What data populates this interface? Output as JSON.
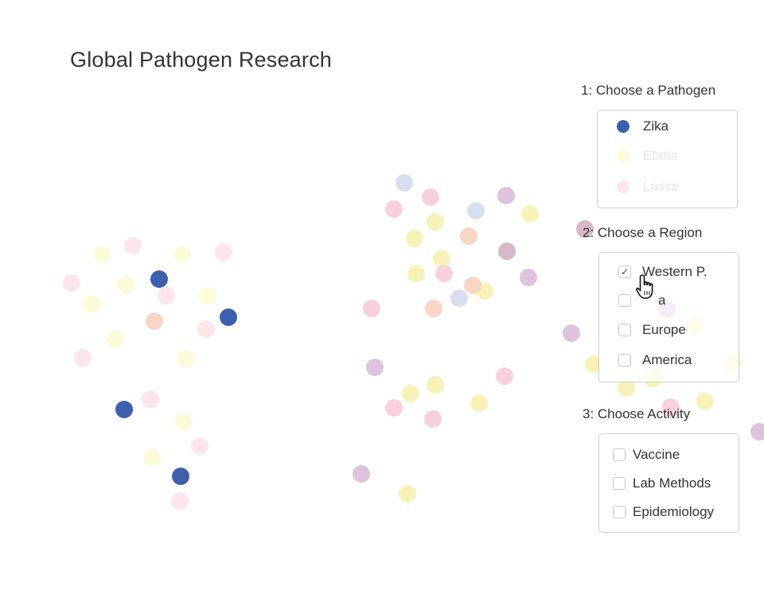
{
  "title": "Global Pathogen Research",
  "steps": {
    "pathogen": {
      "title": "1: Choose a Pathogen",
      "items": [
        {
          "label": "Zika",
          "color": "#3d5fad",
          "active": true
        },
        {
          "label": "Ebola",
          "color": "#fbfbd8",
          "active": false
        },
        {
          "label": "Lasse",
          "color": "#fde6eb",
          "active": false
        }
      ]
    },
    "region": {
      "title": "2: Choose a Region",
      "items": [
        {
          "label": "Western P.",
          "checked": true
        },
        {
          "label": "a",
          "checked": false
        },
        {
          "label": "Europe",
          "checked": false
        },
        {
          "label": "America",
          "checked": false
        }
      ]
    },
    "activity": {
      "title": "3: Choose Activity",
      "items": [
        {
          "label": "Vaccine",
          "checked": false
        },
        {
          "label": "Lab Methods",
          "checked": false
        },
        {
          "label": "Epidemiology",
          "checked": false
        }
      ]
    }
  },
  "icons": {
    "cursor": "hand-pointer-icon",
    "check": "checkmark-icon"
  },
  "colors": {
    "zika": "#3d5fad",
    "zika_light": "#d7def0",
    "ebola_light": "#fbfbd8",
    "ebola_mid": "#f7f3b8",
    "lasse_light": "#fde6eb",
    "lasse_pink": "#f8d0dc",
    "peach": "#f8d5c4",
    "purple": "#ddc3dd",
    "mauve": "#d6b8c6"
  },
  "chart_data": {
    "type": "scatter",
    "series": [
      {
        "color": "zika",
        "points": [
          [
            200,
            351
          ],
          [
            287,
            399
          ],
          [
            156,
            515
          ],
          [
            227,
            599
          ]
        ]
      },
      {
        "color": "zika_light",
        "points": [
          [
            508,
            230
          ],
          [
            598,
            265
          ],
          [
            577,
            375
          ]
        ]
      },
      {
        "color": "ebola_light",
        "points": [
          [
            128,
            320
          ],
          [
            229,
            320
          ],
          [
            158,
            358
          ],
          [
            116,
            382
          ],
          [
            261,
            372
          ],
          [
            145,
            426
          ],
          [
            234,
            451
          ],
          [
            231,
            530
          ],
          [
            192,
            576
          ]
        ]
      },
      {
        "color": "ebola_mid",
        "points": [
          [
            547,
            279
          ],
          [
            521,
            300
          ],
          [
            666,
            269
          ],
          [
            555,
            325
          ],
          [
            523,
            344
          ],
          [
            609,
            366
          ],
          [
            516,
            495
          ],
          [
            547,
            484
          ],
          [
            602,
            507
          ],
          [
            512,
            621
          ],
          [
            746,
            458
          ],
          [
            787,
            488
          ],
          [
            821,
            476
          ],
          [
            873,
            410
          ],
          [
            886,
            505
          ],
          [
            920,
            456
          ]
        ]
      },
      {
        "color": "lasse_light",
        "points": [
          [
            90,
            356
          ],
          [
            167,
            309
          ],
          [
            281,
            317
          ],
          [
            209,
            372
          ],
          [
            259,
            414
          ],
          [
            104,
            450
          ],
          [
            189,
            502
          ],
          [
            251,
            561
          ],
          [
            226,
            630
          ]
        ]
      },
      {
        "color": "lasse_pink",
        "points": [
          [
            495,
            263
          ],
          [
            541,
            248
          ],
          [
            558,
            344
          ],
          [
            467,
            388
          ],
          [
            634,
            473
          ],
          [
            495,
            513
          ],
          [
            544,
            527
          ],
          [
            843,
            512
          ]
        ]
      },
      {
        "color": "peach",
        "points": [
          [
            194,
            404
          ],
          [
            589,
            297
          ],
          [
            594,
            359
          ],
          [
            545,
            388
          ]
        ]
      },
      {
        "color": "purple",
        "points": [
          [
            636,
            246
          ],
          [
            664,
            349
          ],
          [
            718,
            419
          ],
          [
            471,
            462
          ],
          [
            454,
            596
          ],
          [
            838,
            389
          ],
          [
            954,
            543
          ]
        ]
      },
      {
        "color": "mauve",
        "points": [
          [
            637,
            316
          ],
          [
            735,
            288
          ]
        ]
      }
    ]
  }
}
